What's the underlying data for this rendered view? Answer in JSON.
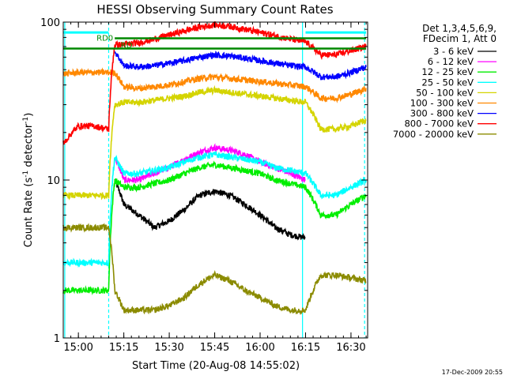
{
  "chart_data": {
    "type": "line",
    "title": "HESSI Observing Summary Count Rates",
    "xlabel": "Start Time (20-Aug-08 14:55:02)",
    "ylabel": "Count Rate (s⁻¹ detector⁻¹)",
    "ylabel_parts": [
      "Count Rate (s",
      "-1",
      " detector",
      "-1",
      ")"
    ],
    "y_scale": "log",
    "ylim": [
      1,
      100
    ],
    "xlim_min": [
      0,
      100.5
    ],
    "x_ticks": [
      {
        "min": 5,
        "label": "15:00"
      },
      {
        "min": 20,
        "label": "15:15"
      },
      {
        "min": 35,
        "label": "15:30"
      },
      {
        "min": 50,
        "label": "15:45"
      },
      {
        "min": 65,
        "label": "16:00"
      },
      {
        "min": 80,
        "label": "16:15"
      },
      {
        "min": 95,
        "label": "16:30"
      }
    ],
    "y_ticks": [
      {
        "value": 1,
        "label": "1"
      },
      {
        "value": 10,
        "label": "10"
      },
      {
        "value": 100,
        "label": "100"
      }
    ],
    "legend_header": [
      "Det 1,3,4,5,6,9,",
      "FDecim 1, Att 0"
    ],
    "legend_position": "top-right, outside plot",
    "series": [
      {
        "name": "3 - 6 keV",
        "color": "#000000",
        "x": [
          0,
          5,
          10,
          15,
          17,
          20,
          25,
          30,
          35,
          40,
          45,
          50,
          55,
          60,
          65,
          70,
          75,
          80,
          85,
          90,
          95,
          100
        ],
        "y": [
          null,
          null,
          null,
          null,
          10,
          7,
          6,
          5,
          5.5,
          6.5,
          8,
          8.5,
          8,
          7,
          6,
          5,
          4.5,
          4.3,
          null,
          null,
          null,
          null
        ]
      },
      {
        "name": "6 - 12 keV",
        "color": "#ff00ff",
        "x": [
          0,
          5,
          10,
          15,
          17,
          20,
          25,
          30,
          35,
          40,
          45,
          50,
          55,
          60,
          65,
          70,
          75,
          80,
          85,
          90,
          95,
          100
        ],
        "y": [
          null,
          null,
          null,
          null,
          14,
          10,
          10,
          11,
          12,
          13.5,
          15,
          16,
          15.5,
          14.5,
          13,
          12,
          11,
          10,
          null,
          null,
          null,
          null
        ]
      },
      {
        "name": "12 - 25 keV",
        "color": "#00ee00",
        "x": [
          0,
          5,
          10,
          15,
          17,
          20,
          25,
          30,
          35,
          40,
          45,
          50,
          55,
          60,
          65,
          70,
          75,
          80,
          85,
          90,
          95,
          100
        ],
        "y": [
          2,
          2,
          2,
          2,
          10,
          9,
          9,
          9.5,
          10,
          11,
          12,
          12.5,
          12,
          11.5,
          11,
          10,
          9.5,
          9,
          6,
          6,
          7,
          8
        ]
      },
      {
        "name": "25 - 50 keV",
        "color": "#00ffff",
        "x": [
          0,
          5,
          10,
          15,
          17,
          20,
          25,
          30,
          35,
          40,
          45,
          50,
          55,
          60,
          65,
          70,
          75,
          80,
          85,
          90,
          95,
          100
        ],
        "y": [
          3,
          3,
          3,
          3,
          14,
          11,
          11,
          11.5,
          12,
          13,
          14,
          14.5,
          14,
          13.5,
          13,
          12,
          11.5,
          11,
          8,
          8,
          9,
          10
        ]
      },
      {
        "name": "50 - 100 keV",
        "color": "#d4d400",
        "x": [
          0,
          5,
          10,
          15,
          17,
          20,
          25,
          30,
          35,
          40,
          45,
          50,
          55,
          60,
          65,
          70,
          75,
          80,
          85,
          90,
          95,
          100
        ],
        "y": [
          8,
          8,
          8,
          8,
          30,
          31,
          31,
          32,
          33,
          34,
          36,
          37,
          36,
          35,
          34,
          33,
          32,
          31,
          21,
          21,
          22,
          24
        ]
      },
      {
        "name": "100 - 300 keV",
        "color": "#ff8800",
        "x": [
          0,
          5,
          10,
          15,
          17,
          20,
          25,
          30,
          35,
          40,
          45,
          50,
          55,
          60,
          65,
          70,
          75,
          80,
          85,
          90,
          95,
          100
        ],
        "y": [
          47,
          48,
          48,
          48,
          48,
          39,
          38,
          39,
          40,
          42,
          44,
          45,
          44,
          43,
          42,
          41,
          40,
          39,
          33,
          33,
          35,
          38
        ]
      },
      {
        "name": "300 - 800 keV",
        "color": "#0000ff",
        "x": [
          0,
          5,
          10,
          15,
          17,
          20,
          25,
          30,
          35,
          40,
          45,
          50,
          55,
          60,
          65,
          70,
          75,
          80,
          85,
          90,
          95,
          100
        ],
        "y": [
          null,
          null,
          null,
          null,
          65,
          53,
          52,
          53,
          55,
          57,
          60,
          62,
          61,
          59,
          57,
          55,
          53,
          52,
          45,
          45,
          48,
          52
        ]
      },
      {
        "name": "800 - 7000 keV",
        "color": "#ff0000",
        "x": [
          0,
          5,
          10,
          15,
          17,
          20,
          25,
          30,
          35,
          40,
          45,
          50,
          55,
          60,
          65,
          70,
          75,
          80,
          85,
          90,
          95,
          100
        ],
        "y": [
          17,
          22,
          22,
          21,
          72,
          72,
          74,
          78,
          83,
          88,
          93,
          96,
          94,
          90,
          86,
          82,
          78,
          75,
          62,
          62,
          66,
          70
        ]
      },
      {
        "name": "7000 - 20000 keV",
        "color": "#8b8b00",
        "x": [
          0,
          5,
          10,
          15,
          17,
          20,
          25,
          30,
          35,
          40,
          45,
          50,
          55,
          60,
          65,
          70,
          75,
          80,
          85,
          90,
          95,
          100
        ],
        "y": [
          5,
          5,
          5,
          5,
          2,
          1.5,
          1.5,
          1.5,
          1.6,
          1.8,
          2.2,
          2.5,
          2.3,
          2,
          1.8,
          1.6,
          1.5,
          1.5,
          2.5,
          2.5,
          2.4,
          2.3
        ]
      }
    ],
    "state_bars": [
      {
        "color": "#00ffff",
        "from_min": 0,
        "to_min": 15,
        "y": 86
      },
      {
        "color": "#00ffff",
        "from_min": 80,
        "to_min": 100,
        "y": 86
      }
    ],
    "state_lines": [
      {
        "color": "#008800",
        "from_min": 0,
        "to_min": 100,
        "y": 68
      },
      {
        "color": "#008800",
        "from_min": 17,
        "to_min": 100,
        "y": 79
      }
    ],
    "annotations": [
      {
        "text": "RD0",
        "color": "#008800",
        "at_min": 11,
        "y": 79
      },
      {
        "text": "RD",
        "color": "#008800",
        "at_min": 19,
        "y": 71
      }
    ],
    "vertical_markers": [
      {
        "color": "#00ffff",
        "style": "solid",
        "at_min": 0.5
      },
      {
        "color": "#00ffff",
        "style": "dashed",
        "at_min": 15
      },
      {
        "color": "#00ffff",
        "style": "solid",
        "at_min": 79
      },
      {
        "color": "#00ffff",
        "style": "dashed",
        "at_min": 99.5
      }
    ],
    "footer": "17-Dec-2009 20:55"
  }
}
